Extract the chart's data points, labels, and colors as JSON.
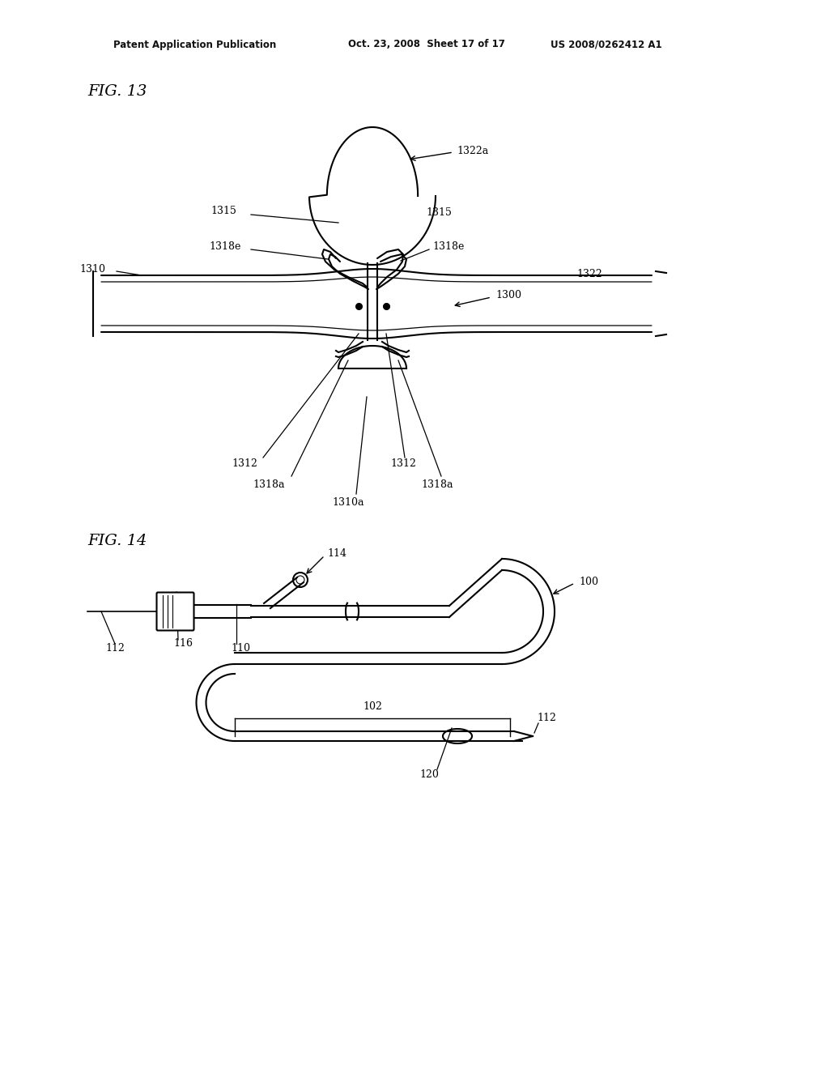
{
  "background_color": "#ffffff",
  "header_left": "Patent Application Publication",
  "header_mid": "Oct. 23, 2008  Sheet 17 of 17",
  "header_right": "US 2008/0262412 A1",
  "fig13_title": "FIG. 13",
  "fig14_title": "FIG. 14",
  "line_color": "#000000",
  "line_width": 1.5,
  "label_fontsize": 9,
  "title_fontsize": 14
}
